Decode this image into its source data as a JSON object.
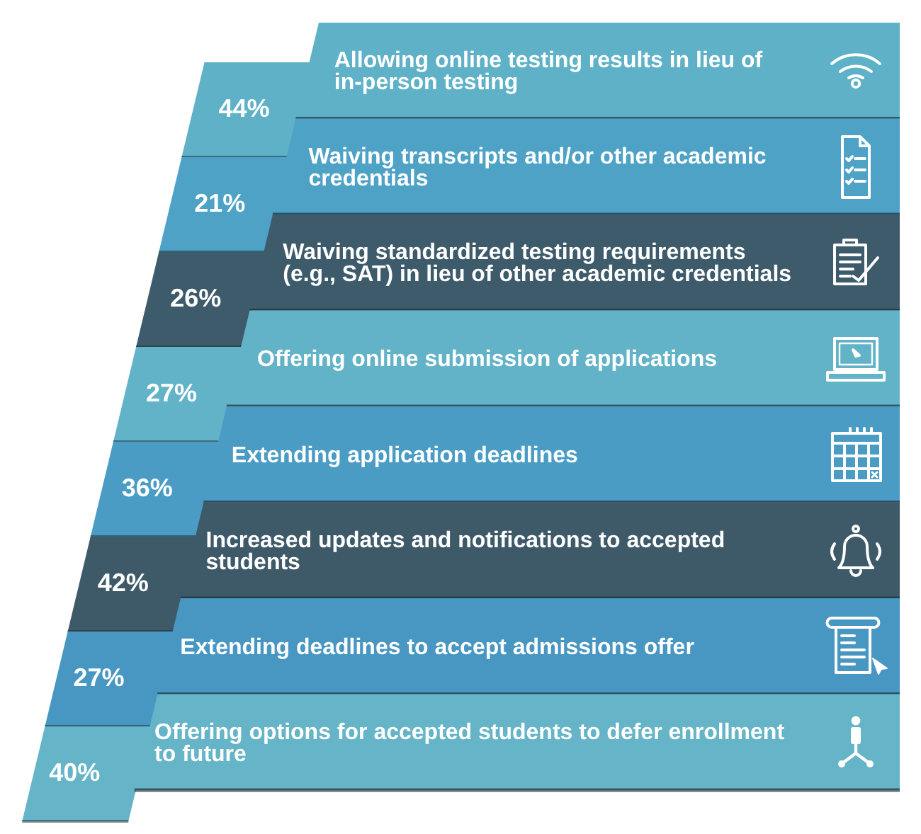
{
  "chart_data": {
    "type": "other",
    "categories": [
      "Allowing online testing results in lieu of in-person testing",
      "Waiving transcripts and/or other academic credentials",
      "Waiving standardized testing requirements (e.g., SAT) in lieu of other academic credentials",
      "Offering online submission of applications",
      "Extending application deadlines",
      "Increased updates and notifications to accepted students",
      "Extending deadlines to accept admissions offer",
      "Offering options for accepted students to defer enrollment to future"
    ],
    "values": [
      44,
      21,
      26,
      27,
      36,
      42,
      27,
      40
    ],
    "value_labels": [
      "44%",
      "21%",
      "26%",
      "27%",
      "36%",
      "42%",
      "27%",
      "40%"
    ],
    "colors": [
      "#5fb1c7",
      "#4da2c6",
      "#3d5b6b",
      "#63b3c8",
      "#4a9cc5",
      "#3e5a69",
      "#4897c2",
      "#65b4c7"
    ]
  }
}
